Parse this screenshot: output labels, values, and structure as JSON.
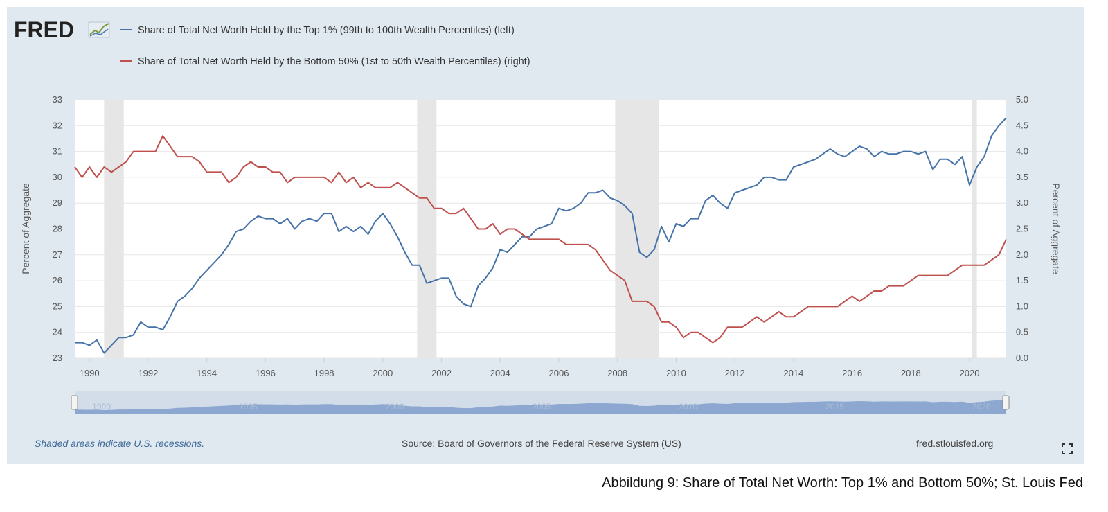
{
  "brand": {
    "logo_text": "FRED",
    "website": "fred.stlouisfed.org"
  },
  "footer": {
    "recession_note": "Shaded areas indicate U.S. recessions.",
    "source": "Source: Board of Governors of the Federal Reserve System (US)"
  },
  "caption": "Abbildung 9: Share of Total Net Worth: Top 1% and Bottom 50%; St. Louis Fed",
  "colors": {
    "background": "#e1e9f0",
    "top1": "#4572a7",
    "bottom50": "#c0504d",
    "recession": "#e6e6e6",
    "navigator": "#7f9fcb"
  },
  "chart_data": {
    "type": "line",
    "xlim": [
      1989.5,
      2021.25
    ],
    "x_ticks": [
      "1990",
      "1992",
      "1994",
      "1996",
      "1998",
      "2000",
      "2002",
      "2004",
      "2006",
      "2008",
      "2010",
      "2012",
      "2014",
      "2016",
      "2018",
      "2020"
    ],
    "navigator_ticks": [
      "1990",
      "1995",
      "2000",
      "2005",
      "2010",
      "2015",
      "2020"
    ],
    "ylabel_left": "Percent of Aggregate",
    "ylabel_right": "Percent of Aggregate",
    "ylim_left": [
      23,
      33
    ],
    "ylim_right": [
      0.0,
      5.0
    ],
    "y_ticks_left": [
      "23",
      "24",
      "25",
      "26",
      "27",
      "28",
      "29",
      "30",
      "31",
      "32",
      "33"
    ],
    "y_ticks_right": [
      "0.0",
      "0.5",
      "1.0",
      "1.5",
      "2.0",
      "2.5",
      "3.0",
      "3.5",
      "4.0",
      "4.5",
      "5.0"
    ],
    "recessions": [
      [
        1990.5,
        1991.17
      ],
      [
        2001.17,
        2001.83
      ],
      [
        2007.92,
        2009.42
      ],
      [
        2020.08,
        2020.25
      ]
    ],
    "grid": true,
    "legend_position": "top-left",
    "series": [
      {
        "name": "Share of Total Net Worth Held by the Top 1% (99th to 100th Wealth Percentiles) (left)",
        "axis": "left",
        "x": [
          1989.5,
          1989.75,
          1990.0,
          1990.25,
          1990.5,
          1990.75,
          1991.0,
          1991.25,
          1991.5,
          1991.75,
          1992.0,
          1992.25,
          1992.5,
          1992.75,
          1993.0,
          1993.25,
          1993.5,
          1993.75,
          1994.0,
          1994.25,
          1994.5,
          1994.75,
          1995.0,
          1995.25,
          1995.5,
          1995.75,
          1996.0,
          1996.25,
          1996.5,
          1996.75,
          1997.0,
          1997.25,
          1997.5,
          1997.75,
          1998.0,
          1998.25,
          1998.5,
          1998.75,
          1999.0,
          1999.25,
          1999.5,
          1999.75,
          2000.0,
          2000.25,
          2000.5,
          2000.75,
          2001.0,
          2001.25,
          2001.5,
          2001.75,
          2002.0,
          2002.25,
          2002.5,
          2002.75,
          2003.0,
          2003.25,
          2003.5,
          2003.75,
          2004.0,
          2004.25,
          2004.5,
          2004.75,
          2005.0,
          2005.25,
          2005.5,
          2005.75,
          2006.0,
          2006.25,
          2006.5,
          2006.75,
          2007.0,
          2007.25,
          2007.5,
          2007.75,
          2008.0,
          2008.25,
          2008.5,
          2008.75,
          2009.0,
          2009.25,
          2009.5,
          2009.75,
          2010.0,
          2010.25,
          2010.5,
          2010.75,
          2011.0,
          2011.25,
          2011.5,
          2011.75,
          2012.0,
          2012.25,
          2012.5,
          2012.75,
          2013.0,
          2013.25,
          2013.5,
          2013.75,
          2014.0,
          2014.25,
          2014.5,
          2014.75,
          2015.0,
          2015.25,
          2015.5,
          2015.75,
          2016.0,
          2016.25,
          2016.5,
          2016.75,
          2017.0,
          2017.25,
          2017.5,
          2017.75,
          2018.0,
          2018.25,
          2018.5,
          2018.75,
          2019.0,
          2019.25,
          2019.5,
          2019.75,
          2020.0,
          2020.25,
          2020.5,
          2020.75,
          2021.0,
          2021.25
        ],
        "values": [
          23.6,
          23.6,
          23.5,
          23.7,
          23.2,
          23.5,
          23.8,
          23.8,
          23.9,
          24.4,
          24.2,
          24.2,
          24.1,
          24.6,
          25.2,
          25.4,
          25.7,
          26.1,
          26.4,
          26.7,
          27.0,
          27.4,
          27.9,
          28.0,
          28.3,
          28.5,
          28.4,
          28.4,
          28.2,
          28.4,
          28.0,
          28.3,
          28.4,
          28.3,
          28.6,
          28.6,
          27.9,
          28.1,
          27.9,
          28.1,
          27.8,
          28.3,
          28.6,
          28.2,
          27.7,
          27.1,
          26.6,
          26.6,
          25.9,
          26.0,
          26.1,
          26.1,
          25.4,
          25.1,
          25.0,
          25.8,
          26.1,
          26.5,
          27.2,
          27.1,
          27.4,
          27.7,
          27.7,
          28.0,
          28.1,
          28.2,
          28.8,
          28.7,
          28.8,
          29.0,
          29.4,
          29.4,
          29.5,
          29.2,
          29.1,
          28.9,
          28.6,
          27.1,
          26.9,
          27.2,
          28.1,
          27.5,
          28.2,
          28.1,
          28.4,
          28.4,
          29.1,
          29.3,
          29.0,
          28.8,
          29.4,
          29.5,
          29.6,
          29.7,
          30.0,
          30.0,
          29.9,
          29.9,
          30.4,
          30.5,
          30.6,
          30.7,
          30.9,
          31.1,
          30.9,
          30.8,
          31.0,
          31.2,
          31.1,
          30.8,
          31.0,
          30.9,
          30.9,
          31.0,
          31.0,
          30.9,
          31.0,
          30.3,
          30.7,
          30.7,
          30.5,
          30.8,
          29.7,
          30.4,
          30.8,
          31.6,
          32.0,
          32.3
        ]
      },
      {
        "name": "Share of Total Net Worth Held by the Bottom 50% (1st to 50th Wealth Percentiles) (right)",
        "axis": "right",
        "x": [
          1989.5,
          1989.75,
          1990.0,
          1990.25,
          1990.5,
          1990.75,
          1991.0,
          1991.25,
          1991.5,
          1991.75,
          1992.0,
          1992.25,
          1992.5,
          1992.75,
          1993.0,
          1993.25,
          1993.5,
          1993.75,
          1994.0,
          1994.25,
          1994.5,
          1994.75,
          1995.0,
          1995.25,
          1995.5,
          1995.75,
          1996.0,
          1996.25,
          1996.5,
          1996.75,
          1997.0,
          1997.25,
          1997.5,
          1997.75,
          1998.0,
          1998.25,
          1998.5,
          1998.75,
          1999.0,
          1999.25,
          1999.5,
          1999.75,
          2000.0,
          2000.25,
          2000.5,
          2000.75,
          2001.0,
          2001.25,
          2001.5,
          2001.75,
          2002.0,
          2002.25,
          2002.5,
          2002.75,
          2003.0,
          2003.25,
          2003.5,
          2003.75,
          2004.0,
          2004.25,
          2004.5,
          2004.75,
          2005.0,
          2005.25,
          2005.5,
          2005.75,
          2006.0,
          2006.25,
          2006.5,
          2006.75,
          2007.0,
          2007.25,
          2007.5,
          2007.75,
          2008.0,
          2008.25,
          2008.5,
          2008.75,
          2009.0,
          2009.25,
          2009.5,
          2009.75,
          2010.0,
          2010.25,
          2010.5,
          2010.75,
          2011.0,
          2011.25,
          2011.5,
          2011.75,
          2012.0,
          2012.25,
          2012.5,
          2012.75,
          2013.0,
          2013.25,
          2013.5,
          2013.75,
          2014.0,
          2014.25,
          2014.5,
          2014.75,
          2015.0,
          2015.25,
          2015.5,
          2015.75,
          2016.0,
          2016.25,
          2016.5,
          2016.75,
          2017.0,
          2017.25,
          2017.5,
          2017.75,
          2018.0,
          2018.25,
          2018.5,
          2018.75,
          2019.0,
          2019.25,
          2019.5,
          2019.75,
          2020.0,
          2020.25,
          2020.5,
          2020.75,
          2021.0,
          2021.25
        ],
        "values": [
          3.7,
          3.5,
          3.7,
          3.5,
          3.7,
          3.6,
          3.7,
          3.8,
          4.0,
          4.0,
          4.0,
          4.0,
          4.3,
          4.1,
          3.9,
          3.9,
          3.9,
          3.8,
          3.6,
          3.6,
          3.6,
          3.4,
          3.5,
          3.7,
          3.8,
          3.7,
          3.7,
          3.6,
          3.6,
          3.4,
          3.5,
          3.5,
          3.5,
          3.5,
          3.5,
          3.4,
          3.6,
          3.4,
          3.5,
          3.3,
          3.4,
          3.3,
          3.3,
          3.3,
          3.4,
          3.3,
          3.2,
          3.1,
          3.1,
          2.9,
          2.9,
          2.8,
          2.8,
          2.9,
          2.7,
          2.5,
          2.5,
          2.6,
          2.4,
          2.5,
          2.5,
          2.4,
          2.3,
          2.3,
          2.3,
          2.3,
          2.3,
          2.2,
          2.2,
          2.2,
          2.2,
          2.1,
          1.9,
          1.7,
          1.6,
          1.5,
          1.1,
          1.1,
          1.1,
          1.0,
          0.7,
          0.7,
          0.6,
          0.4,
          0.5,
          0.5,
          0.4,
          0.3,
          0.4,
          0.6,
          0.6,
          0.6,
          0.7,
          0.8,
          0.7,
          0.8,
          0.9,
          0.8,
          0.8,
          0.9,
          1.0,
          1.0,
          1.0,
          1.0,
          1.0,
          1.1,
          1.2,
          1.1,
          1.2,
          1.3,
          1.3,
          1.4,
          1.4,
          1.4,
          1.5,
          1.6,
          1.6,
          1.6,
          1.6,
          1.6,
          1.7,
          1.8,
          1.8,
          1.8,
          1.8,
          1.9,
          2.0,
          2.3
        ]
      }
    ]
  }
}
